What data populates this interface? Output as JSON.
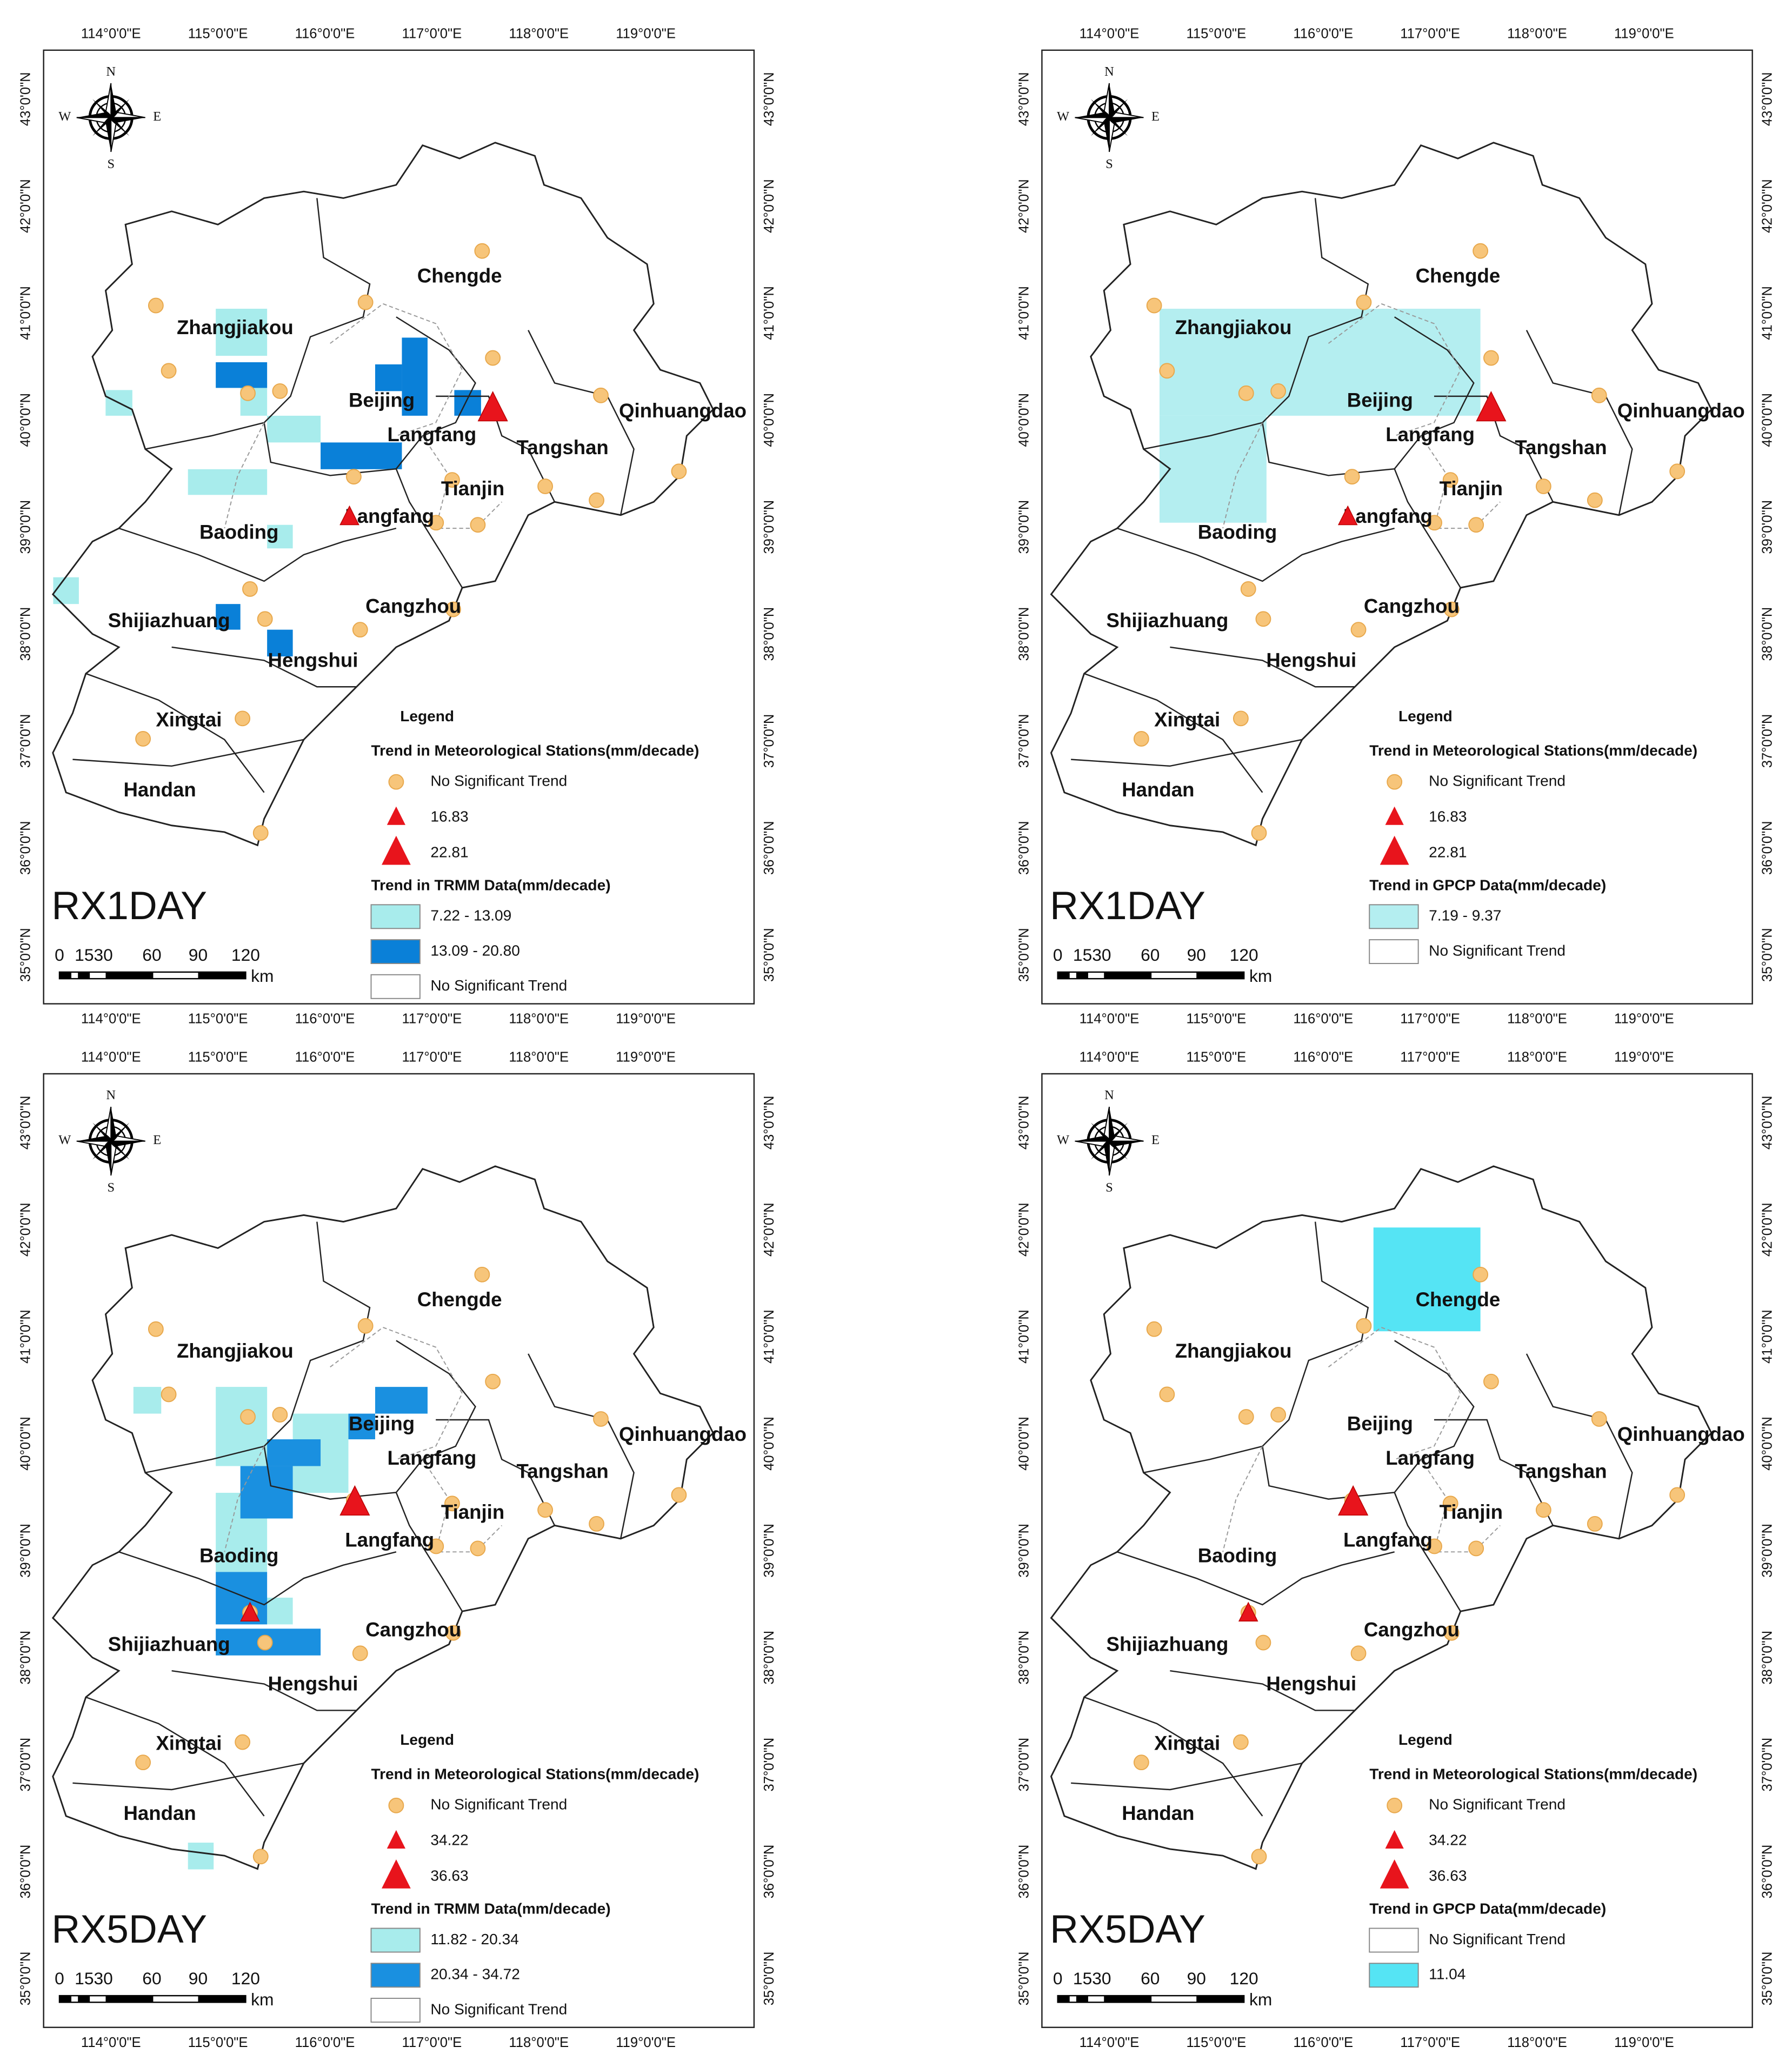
{
  "lon_labels": [
    "114°0'0\"E",
    "115°0'0\"E",
    "116°0'0\"E",
    "117°0'0\"E",
    "118°0'0\"E",
    "119°0'0\"E"
  ],
  "lat_labels": [
    "43°0'0\"N",
    "42°0'0\"N",
    "41°0'0\"N",
    "40°0'0\"N",
    "39°0'0\"N",
    "38°0'0\"N",
    "37°0'0\"N",
    "36°0'0\"N",
    "35°0'0\"N"
  ],
  "compass": [
    "N",
    "E",
    "S",
    "W"
  ],
  "region_labels": [
    "Chengde",
    "Zhangjiakou",
    "Beijing",
    "Qinhuangdao",
    "Langfang",
    "Tangshan",
    "Tianjin",
    "Langfang",
    "Baoding",
    "Shijiazhuang",
    "Cangzhou",
    "Hengshui",
    "Xingtai",
    "Handan"
  ],
  "stations": [
    [
      114.42,
      41.07
    ],
    [
      114.54,
      40.46
    ],
    [
      115.28,
      40.25
    ],
    [
      115.58,
      40.27
    ],
    [
      116.38,
      41.1
    ],
    [
      117.47,
      41.58
    ],
    [
      117.57,
      40.58
    ],
    [
      118.58,
      40.23
    ],
    [
      119.31,
      39.52
    ],
    [
      118.54,
      39.25
    ],
    [
      118.06,
      39.38
    ],
    [
      117.43,
      39.02
    ],
    [
      117.04,
      39.04
    ],
    [
      116.27,
      39.47
    ],
    [
      115.3,
      38.42
    ],
    [
      115.44,
      38.14
    ],
    [
      116.33,
      38.04
    ],
    [
      117.2,
      38.23
    ],
    [
      115.23,
      37.21
    ],
    [
      114.3,
      37.02
    ],
    [
      115.4,
      36.14
    ],
    [
      117.19,
      39.44
    ]
  ],
  "scale_bar": {
    "labels": [
      "0",
      "1530",
      "60",
      "90",
      "120"
    ],
    "unit": "km"
  },
  "legend_title": "Legend",
  "station_legend_title": "Trend in Meteorological Stations(mm/decade)",
  "no_trend_label": "No Significant Trend",
  "panels": [
    {
      "title": "RX1DAY",
      "triangles": [
        {
          "value": 16.83,
          "sites": [
            [
              116.23,
              39.09
            ]
          ]
        },
        {
          "value": 22.81,
          "sites": [
            [
              117.57,
              40.1
            ]
          ]
        }
      ],
      "grid_title": "Trend in TRMM Data(mm/decade)",
      "grid_classes": [
        {
          "label": "7.22 - 13.09",
          "color": "#a8ecec",
          "cells": [
            [
              114.98,
              41.04,
              115.46,
              40.6
            ],
            [
              113.95,
              40.28,
              114.2,
              40.04
            ],
            [
              115.21,
              40.35,
              115.46,
              40.04
            ],
            [
              115.46,
              40.04,
              115.96,
              39.79
            ],
            [
              114.72,
              39.54,
              115.46,
              39.3
            ],
            [
              115.46,
              39.02,
              115.7,
              38.8
            ],
            [
              113.46,
              38.53,
              113.7,
              38.28
            ]
          ]
        },
        {
          "label": "13.09 - 20.80",
          "color": "#0a80d8",
          "cells": [
            [
              114.98,
              40.54,
              115.46,
              40.3
            ],
            [
              116.72,
              40.77,
              116.96,
              40.04
            ],
            [
              116.47,
              40.52,
              116.72,
              40.27
            ],
            [
              117.21,
              40.28,
              117.46,
              40.04
            ],
            [
              115.96,
              39.79,
              116.72,
              39.54
            ],
            [
              114.98,
              38.28,
              115.21,
              38.04
            ],
            [
              115.46,
              38.04,
              115.7,
              37.79
            ]
          ]
        },
        {
          "label": "No Significant Trend",
          "color": "#ffffff"
        }
      ]
    },
    {
      "title": "RX1DAY",
      "triangles": [
        {
          "value": 16.83,
          "sites": [
            [
              116.23,
              39.09
            ]
          ]
        },
        {
          "value": 22.81,
          "sites": [
            [
              117.57,
              40.1
            ]
          ]
        }
      ],
      "grid_title": "Trend in GPCP Data(mm/decade)",
      "grid_classes": [
        {
          "label": "7.19 - 9.37",
          "color": "#b4eef0",
          "cells": [
            [
              114.47,
              41.04,
              117.47,
              40.04
            ],
            [
              114.47,
              40.04,
              115.47,
              39.04
            ]
          ]
        },
        {
          "label": "No Significant Trend",
          "color": "#ffffff"
        }
      ]
    },
    {
      "title": "RX5DAY",
      "triangles": [
        {
          "value": 34.22,
          "sites": [
            [
              115.3,
              38.41
            ]
          ]
        },
        {
          "value": 36.63,
          "sites": [
            [
              116.28,
              39.44
            ]
          ]
        }
      ],
      "grid_title": "Trend in TRMM Data(mm/decade)",
      "grid_classes": [
        {
          "label": "11.82 - 20.34",
          "color": "#a8ecec",
          "cells": [
            [
              114.21,
              40.53,
              114.47,
              40.28
            ],
            [
              114.98,
              40.53,
              115.46,
              39.79
            ],
            [
              115.7,
              40.28,
              116.22,
              39.54
            ],
            [
              114.98,
              39.54,
              115.46,
              38.8
            ],
            [
              115.46,
              38.56,
              115.7,
              38.31
            ],
            [
              114.72,
              36.27,
              114.96,
              36.02
            ]
          ]
        },
        {
          "label": "20.34 - 34.72",
          "color": "#1a90e0",
          "cells": [
            [
              116.47,
              40.53,
              116.96,
              40.28
            ],
            [
              116.22,
              40.28,
              116.47,
              40.04
            ],
            [
              115.46,
              40.04,
              115.96,
              39.79
            ],
            [
              115.21,
              39.79,
              115.7,
              39.3
            ],
            [
              114.98,
              38.8,
              115.46,
              38.31
            ],
            [
              114.98,
              38.27,
              115.96,
              38.02
            ]
          ]
        },
        {
          "label": "No Significant Trend",
          "color": "#ffffff"
        }
      ]
    },
    {
      "title": "RX5DAY",
      "triangles": [
        {
          "value": 34.22,
          "sites": [
            [
              115.3,
              38.41
            ]
          ]
        },
        {
          "value": 36.63,
          "sites": [
            [
              116.28,
              39.44
            ]
          ]
        }
      ],
      "grid_title": "Trend in GPCP Data(mm/decade)",
      "grid_classes": [
        {
          "label": "No Significant Trend",
          "color": "#ffffff"
        },
        {
          "label": "11.04",
          "color": "#55e4f4",
          "cells": [
            [
              116.47,
              42.02,
              117.47,
              41.05
            ]
          ]
        }
      ]
    }
  ]
}
